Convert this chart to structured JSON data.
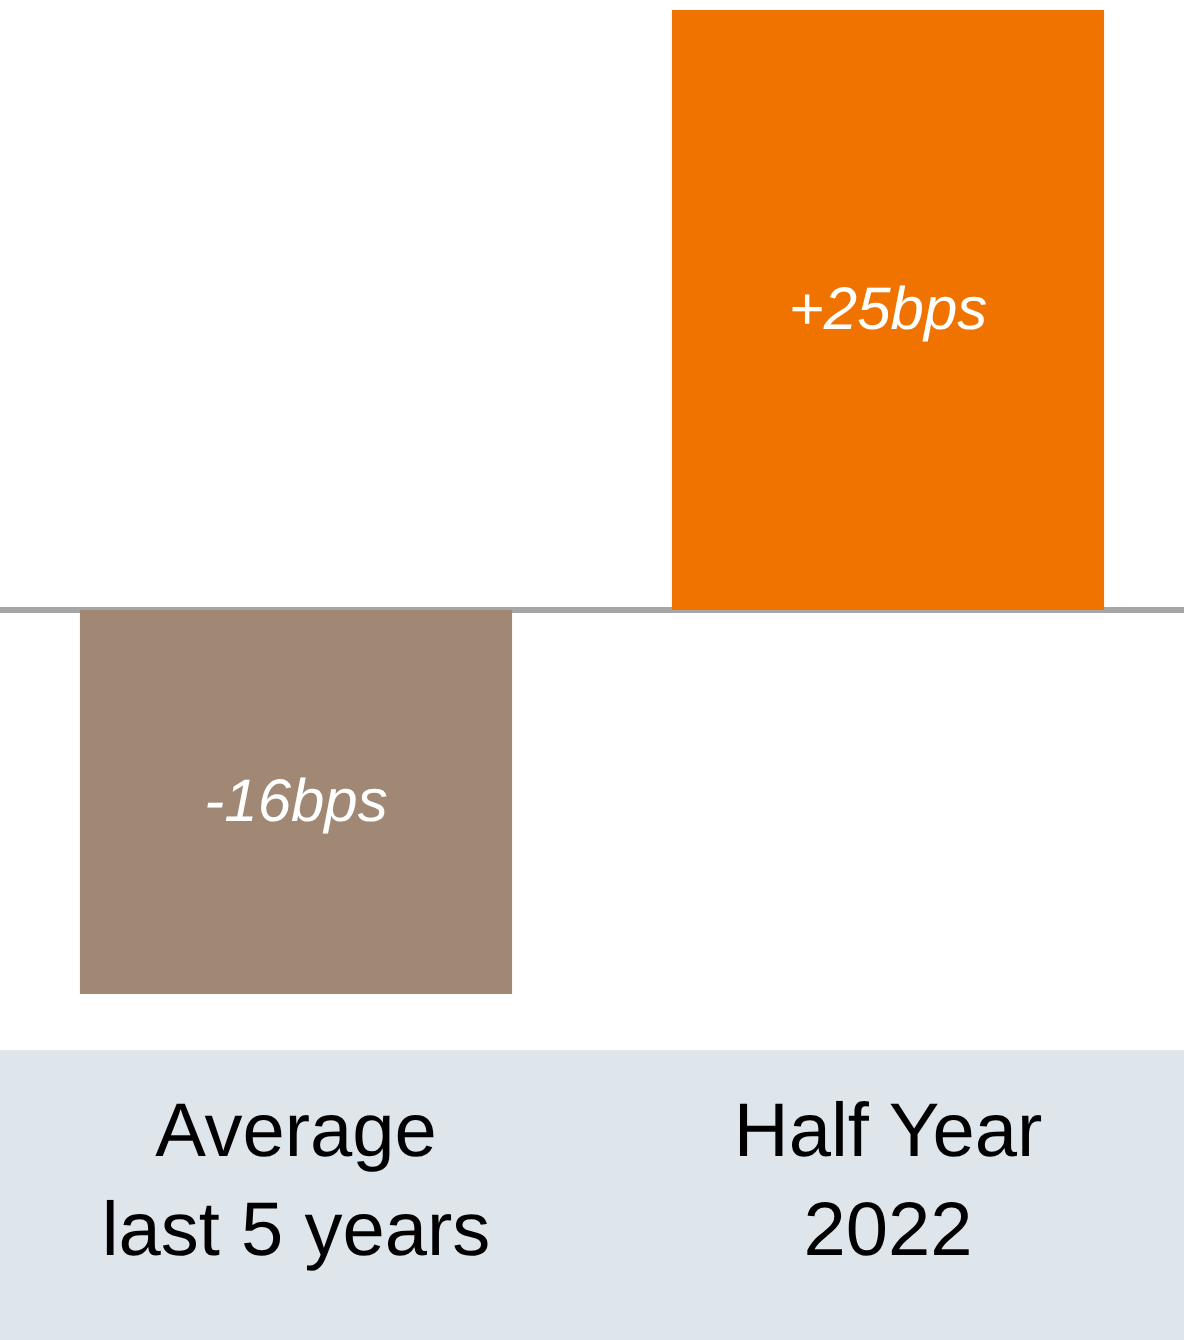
{
  "chart_data": {
    "type": "bar",
    "categories": [
      "Average\nlast 5 years",
      "Half Year\n2022"
    ],
    "values": [
      -16,
      25
    ],
    "colors": [
      "#a08875",
      "#f07300"
    ],
    "value_labels": [
      "-16bps",
      "+25bps"
    ],
    "ylim": [
      -16,
      25
    ],
    "tick_labels": "x"
  }
}
